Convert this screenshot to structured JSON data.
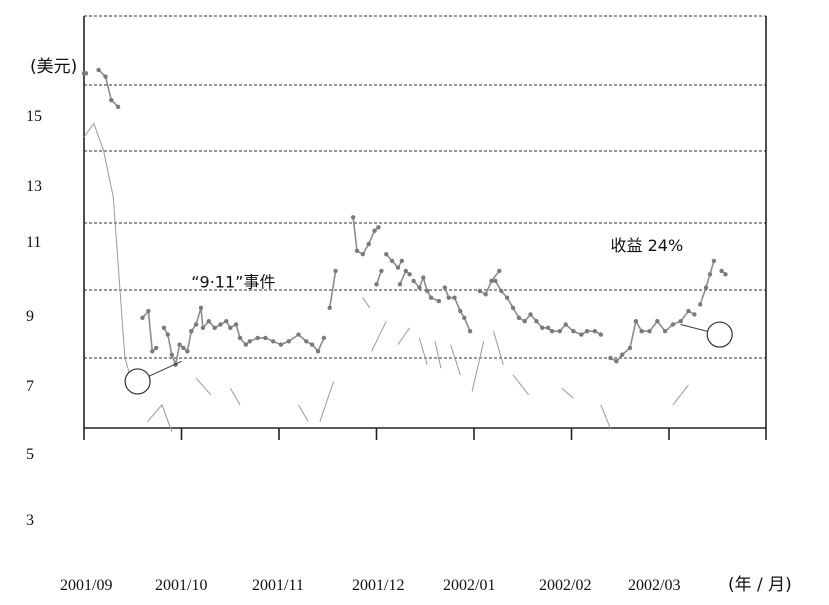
{
  "chart_data": {
    "type": "line",
    "title": "",
    "ylabel": "(美元)",
    "xlabel": "(年 / 月)",
    "ylim": [
      3,
      16.5
    ],
    "y_ticks": [
      "15",
      "13",
      "11",
      "9",
      "7",
      "5",
      "3"
    ],
    "x_ticks": [
      "2001/09",
      "2001/10",
      "2001/11",
      "2001/12",
      "2002/01",
      "2002/02",
      "2002/03"
    ],
    "grid": true,
    "series": [
      {
        "style": "dotted-markers",
        "color": "#7a7a7a",
        "segments": [
          [
            [
              0,
              15.5
            ],
            [
              0.02,
              15.5
            ]
          ],
          [
            [
              0.15,
              15.6
            ],
            [
              0.22,
              15.4
            ],
            [
              0.28,
              14.7
            ],
            [
              0.35,
              14.5
            ]
          ],
          [
            [
              0.6,
              8.2
            ],
            [
              0.66,
              8.4
            ],
            [
              0.7,
              7.2
            ],
            [
              0.74,
              7.3
            ]
          ],
          [
            [
              0.82,
              7.9
            ],
            [
              0.86,
              7.7
            ],
            [
              0.9,
              7.1
            ],
            [
              0.94,
              6.8
            ],
            [
              0.98,
              7.4
            ],
            [
              1.02,
              7.3
            ],
            [
              1.06,
              7.2
            ],
            [
              1.1,
              7.8
            ],
            [
              1.15,
              8.0
            ],
            [
              1.2,
              8.5
            ],
            [
              1.22,
              7.9
            ],
            [
              1.28,
              8.1
            ],
            [
              1.34,
              7.9
            ],
            [
              1.4,
              8.0
            ],
            [
              1.46,
              8.1
            ],
            [
              1.5,
              7.9
            ],
            [
              1.56,
              8.0
            ],
            [
              1.6,
              7.6
            ],
            [
              1.66,
              7.4
            ],
            [
              1.7,
              7.5
            ],
            [
              1.78,
              7.6
            ],
            [
              1.86,
              7.6
            ],
            [
              1.94,
              7.5
            ],
            [
              2.02,
              7.4
            ],
            [
              2.1,
              7.5
            ],
            [
              2.2,
              7.7
            ],
            [
              2.28,
              7.5
            ],
            [
              2.34,
              7.4
            ],
            [
              2.4,
              7.2
            ],
            [
              2.46,
              7.6
            ]
          ],
          [
            [
              2.52,
              8.5
            ],
            [
              2.58,
              9.6
            ]
          ],
          [
            [
              2.76,
              11.2
            ],
            [
              2.8,
              10.2
            ],
            [
              2.86,
              10.1
            ],
            [
              2.92,
              10.4
            ],
            [
              2.98,
              10.8
            ],
            [
              3.02,
              10.9
            ]
          ],
          [
            [
              3.0,
              9.2
            ],
            [
              3.05,
              9.6
            ]
          ],
          [
            [
              3.1,
              10.1
            ],
            [
              3.16,
              9.9
            ],
            [
              3.22,
              9.7
            ],
            [
              3.26,
              9.9
            ]
          ],
          [
            [
              3.24,
              9.2
            ],
            [
              3.3,
              9.6
            ],
            [
              3.34,
              9.5
            ]
          ],
          [
            [
              3.38,
              9.3
            ],
            [
              3.44,
              9.1
            ],
            [
              3.48,
              9.4
            ],
            [
              3.52,
              9.0
            ],
            [
              3.56,
              8.8
            ],
            [
              3.64,
              8.7
            ]
          ],
          [
            [
              3.7,
              9.1
            ],
            [
              3.74,
              8.8
            ],
            [
              3.8,
              8.8
            ],
            [
              3.86,
              8.4
            ],
            [
              3.9,
              8.2
            ],
            [
              3.96,
              7.8
            ]
          ],
          [
            [
              4.06,
              9.0
            ],
            [
              4.12,
              8.9
            ],
            [
              4.18,
              9.3
            ],
            [
              4.26,
              9.6
            ]
          ],
          [
            [
              4.22,
              9.3
            ],
            [
              4.28,
              9.0
            ],
            [
              4.34,
              8.8
            ],
            [
              4.4,
              8.5
            ],
            [
              4.46,
              8.2
            ],
            [
              4.52,
              8.1
            ],
            [
              4.58,
              8.3
            ],
            [
              4.64,
              8.1
            ],
            [
              4.7,
              7.9
            ],
            [
              4.76,
              7.9
            ],
            [
              4.8,
              7.8
            ],
            [
              4.88,
              7.8
            ],
            [
              4.94,
              8.0
            ],
            [
              5.02,
              7.8
            ],
            [
              5.1,
              7.7
            ],
            [
              5.16,
              7.8
            ],
            [
              5.24,
              7.8
            ],
            [
              5.3,
              7.7
            ]
          ],
          [
            [
              5.4,
              7.0
            ],
            [
              5.46,
              6.9
            ],
            [
              5.52,
              7.1
            ],
            [
              5.6,
              7.3
            ],
            [
              5.66,
              8.1
            ],
            [
              5.72,
              7.8
            ],
            [
              5.8,
              7.8
            ],
            [
              5.88,
              8.1
            ],
            [
              5.96,
              7.8
            ],
            [
              6.04,
              8.0
            ],
            [
              6.12,
              8.1
            ],
            [
              6.2,
              8.4
            ],
            [
              6.26,
              8.3
            ]
          ],
          [
            [
              6.32,
              8.6
            ],
            [
              6.38,
              9.1
            ],
            [
              6.42,
              9.5
            ],
            [
              6.46,
              9.9
            ]
          ],
          [
            [
              6.54,
              9.6
            ],
            [
              6.58,
              9.5
            ]
          ]
        ]
      },
      {
        "style": "thin-dashed",
        "color": "#9a9a9a",
        "segments": [
          [
            [
              0,
              13.6
            ],
            [
              0.1,
              14.0
            ],
            [
              0.2,
              13.2
            ],
            [
              0.3,
              11.8
            ],
            [
              0.42,
              7.0
            ],
            [
              0.5,
              6.2
            ]
          ],
          [
            [
              0.65,
              5.1
            ],
            [
              0.8,
              5.6
            ],
            [
              0.9,
              4.8
            ]
          ],
          [
            [
              1.15,
              6.4
            ],
            [
              1.3,
              5.9
            ]
          ],
          [
            [
              1.5,
              6.1
            ],
            [
              1.6,
              5.6
            ]
          ],
          [
            [
              2.2,
              5.6
            ],
            [
              2.3,
              5.1
            ]
          ],
          [
            [
              2.42,
              5.1
            ],
            [
              2.56,
              6.3
            ]
          ],
          [
            [
              2.86,
              8.8
            ],
            [
              2.93,
              8.5
            ]
          ],
          [
            [
              2.95,
              7.2
            ],
            [
              3.1,
              8.1
            ]
          ],
          [
            [
              3.22,
              7.4
            ],
            [
              3.34,
              7.9
            ]
          ],
          [
            [
              3.44,
              7.6
            ],
            [
              3.52,
              6.8
            ]
          ],
          [
            [
              3.6,
              7.5
            ],
            [
              3.66,
              6.7
            ]
          ],
          [
            [
              3.76,
              7.4
            ],
            [
              3.86,
              6.5
            ]
          ],
          [
            [
              3.98,
              6.0
            ],
            [
              4.1,
              7.5
            ]
          ],
          [
            [
              4.2,
              7.8
            ],
            [
              4.3,
              6.8
            ]
          ],
          [
            [
              4.4,
              6.5
            ],
            [
              4.56,
              5.9
            ]
          ],
          [
            [
              4.9,
              6.1
            ],
            [
              5.02,
              5.8
            ]
          ],
          [
            [
              5.3,
              5.6
            ],
            [
              5.4,
              4.9
            ]
          ],
          [
            [
              6.04,
              5.6
            ],
            [
              6.2,
              6.2
            ]
          ]
        ]
      }
    ],
    "annotations": [
      {
        "text": "“9·11”事件",
        "x": 1.1,
        "y": 9.1
      },
      {
        "text": "收益 24%",
        "x": 5.4,
        "y": 10.2
      }
    ],
    "circles": [
      {
        "x": 0.55,
        "y": 6.3
      },
      {
        "x": 6.52,
        "y": 7.7
      }
    ],
    "leaders": [
      [
        [
          0.55,
          6.3
        ],
        [
          1.0,
          6.9
        ]
      ],
      [
        [
          6.52,
          7.7
        ],
        [
          6.12,
          8.0
        ]
      ]
    ]
  }
}
